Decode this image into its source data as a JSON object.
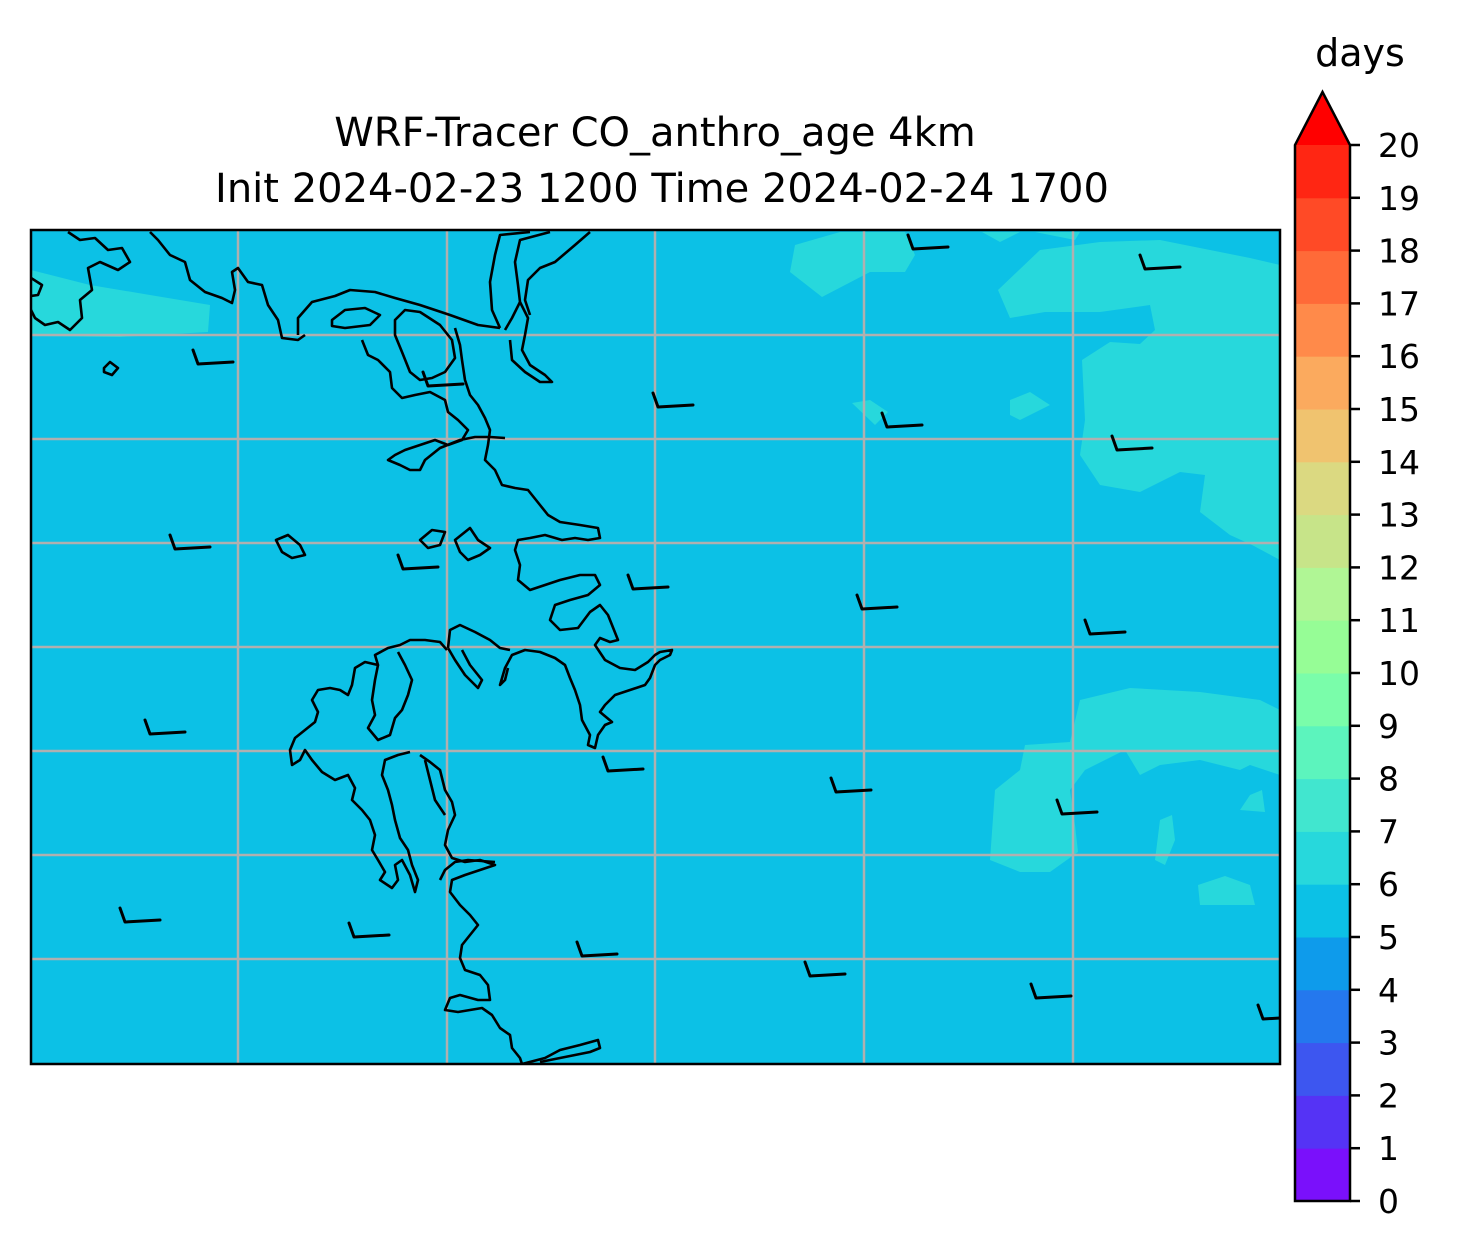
{
  "chart_data": {
    "type": "heatmap",
    "title_line1": "WRF-Tracer CO_anthro_age 4km",
    "title_line2": "Init 2024-02-23 1200 Time 2024-02-24 1700",
    "field_name": "CO_anthro_age",
    "colorbar": {
      "label": "days",
      "min": 0,
      "max": 20,
      "levels": [
        0,
        1,
        2,
        3,
        4,
        5,
        6,
        7,
        8,
        9,
        10,
        11,
        12,
        13,
        14,
        15,
        16,
        17,
        18,
        19,
        20
      ],
      "tick_labels": [
        "0",
        "1",
        "2",
        "3",
        "4",
        "5",
        "6",
        "7",
        "8",
        "9",
        "10",
        "11",
        "12",
        "13",
        "14",
        "15",
        "16",
        "17",
        "18",
        "19",
        "20"
      ],
      "extend": "max",
      "colormap": "rainbow",
      "band_colors": [
        "#7a10fb",
        "#5533f5",
        "#3d56f0",
        "#2478ee",
        "#0e9beb",
        "#0cc1e6",
        "#27d8dc",
        "#41e6cf",
        "#5cf4bd",
        "#7afdaa",
        "#96fd96",
        "#b0f695",
        "#c7e489",
        "#dbd981",
        "#f0c36f",
        "#fbaa5e",
        "#ff8a4a",
        "#ff6a38",
        "#ff4a26",
        "#ff2613"
      ],
      "extend_color": "#ff0000"
    },
    "field_summary": {
      "background_value_range": [
        5,
        6
      ],
      "patch_value_range": [
        6,
        7
      ]
    },
    "grid": true,
    "wind_barbs": true,
    "coastlines": true
  },
  "colors": {
    "field_5_6": "#0cc1e6",
    "field_6_7": "#27d8dc",
    "gridline": "#b0b0b0",
    "coastline": "#000000"
  }
}
